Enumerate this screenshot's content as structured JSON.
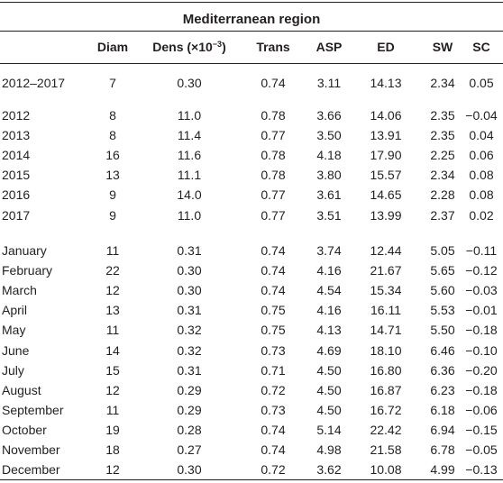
{
  "table": {
    "title": "Mediterranean region",
    "headers": {
      "period": "",
      "diam": "Diam",
      "dens_prefix": "Dens (×10",
      "dens_exp": "−3",
      "dens_suffix": ")",
      "trans": "Trans",
      "asp": "ASP",
      "ed": "ED",
      "sw": "SW",
      "sc": "SC"
    },
    "groups": [
      {
        "rows": [
          [
            "2012–2017",
            "7",
            "0.30",
            "0.74",
            "3.11",
            "14.13",
            "2.34",
            "0.05"
          ]
        ]
      },
      {
        "rows": [
          [
            "2012",
            "8",
            "11.0",
            "0.78",
            "3.66",
            "14.06",
            "2.35",
            "−0.04"
          ],
          [
            "2013",
            "8",
            "11.4",
            "0.77",
            "3.50",
            "13.91",
            "2.35",
            "0.04"
          ],
          [
            "2014",
            "16",
            "11.6",
            "0.78",
            "4.18",
            "17.90",
            "2.25",
            "0.06"
          ],
          [
            "2015",
            "13",
            "11.1",
            "0.78",
            "3.80",
            "15.57",
            "2.34",
            "0.08"
          ],
          [
            "2016",
            "9",
            "14.0",
            "0.77",
            "3.61",
            "14.65",
            "2.28",
            "0.08"
          ],
          [
            "2017",
            "9",
            "11.0",
            "0.77",
            "3.51",
            "13.99",
            "2.37",
            "0.02"
          ]
        ]
      },
      {
        "rows": [
          [
            "January",
            "11",
            "0.31",
            "0.74",
            "3.74",
            "12.44",
            "5.05",
            "−0.11"
          ],
          [
            "February",
            "22",
            "0.30",
            "0.74",
            "4.16",
            "21.67",
            "5.65",
            "−0.12"
          ],
          [
            "March",
            "12",
            "0.30",
            "0.74",
            "4.54",
            "15.34",
            "5.60",
            "−0.03"
          ],
          [
            "April",
            "13",
            "0.31",
            "0.75",
            "4.16",
            "16.11",
            "5.53",
            "−0.01"
          ],
          [
            "May",
            "11",
            "0.32",
            "0.75",
            "4.13",
            "14.71",
            "5.50",
            "−0.18"
          ],
          [
            "June",
            "14",
            "0.32",
            "0.73",
            "4.69",
            "18.10",
            "6.46",
            "−0.10"
          ],
          [
            "July",
            "15",
            "0.31",
            "0.71",
            "4.50",
            "16.80",
            "6.36",
            "−0.20"
          ],
          [
            "August",
            "12",
            "0.29",
            "0.72",
            "4.50",
            "16.87",
            "6.23",
            "−0.18"
          ],
          [
            "September",
            "11",
            "0.29",
            "0.73",
            "4.50",
            "16.72",
            "6.18",
            "−0.06"
          ],
          [
            "October",
            "19",
            "0.28",
            "0.74",
            "5.14",
            "22.42",
            "6.94",
            "−0.15"
          ],
          [
            "November",
            "18",
            "0.27",
            "0.74",
            "4.98",
            "21.58",
            "6.78",
            "−0.05"
          ],
          [
            "December",
            "12",
            "0.30",
            "0.72",
            "3.62",
            "10.08",
            "4.99",
            "−0.13"
          ]
        ]
      }
    ]
  }
}
